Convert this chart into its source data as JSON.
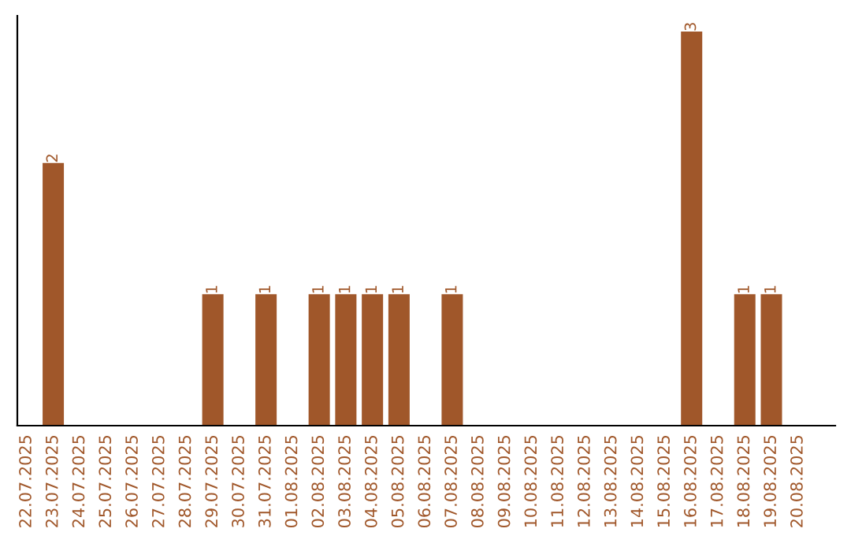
{
  "chart_data": {
    "type": "bar",
    "categories": [
      "22.07.2025",
      "23.07.2025",
      "24.07.2025",
      "25.07.2025",
      "26.07.2025",
      "27.07.2025",
      "28.07.2025",
      "29.07.2025",
      "30.07.2025",
      "31.07.2025",
      "01.08.2025",
      "02.08.2025",
      "03.08.2025",
      "04.08.2025",
      "05.08.2025",
      "06.08.2025",
      "07.08.2025",
      "08.08.2025",
      "09.08.2025",
      "10.08.2025",
      "11.08.2025",
      "12.08.2025",
      "13.08.2025",
      "14.08.2025",
      "15.08.2025",
      "16.08.2025",
      "17.08.2025",
      "18.08.2025",
      "19.08.2025",
      "20.08.2025"
    ],
    "values": [
      0,
      2,
      0,
      0,
      0,
      0,
      0,
      1,
      0,
      1,
      0,
      1,
      1,
      1,
      1,
      0,
      1,
      0,
      0,
      0,
      0,
      0,
      0,
      0,
      0,
      3,
      0,
      1,
      1,
      0
    ],
    "value_labels": [
      null,
      "2",
      null,
      null,
      null,
      null,
      null,
      "1",
      null,
      "1",
      null,
      "1",
      "1",
      "1",
      "1",
      null,
      "1",
      null,
      null,
      null,
      null,
      null,
      null,
      null,
      null,
      "3",
      null,
      "1",
      "1",
      null
    ],
    "color": "#a0572a",
    "tick_labels": "x",
    "grid": false,
    "legend": false
  }
}
